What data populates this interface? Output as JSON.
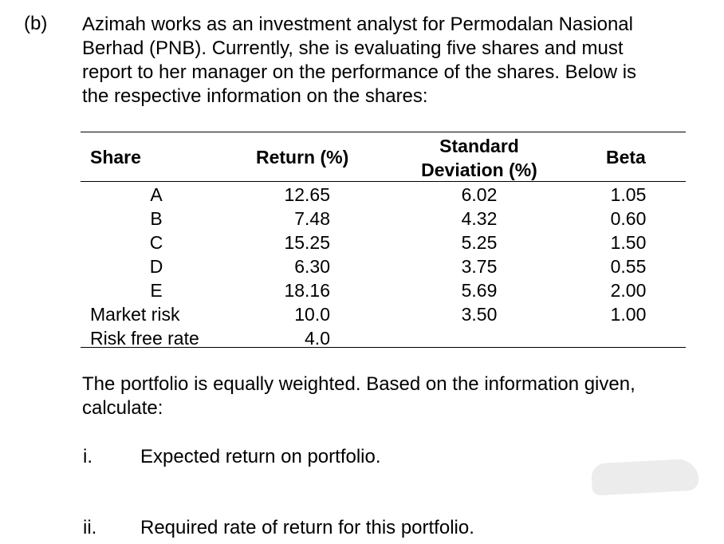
{
  "question": {
    "label": "(b)",
    "intro_lines": [
      "Azimah works as an investment analyst for Permodalan Nasional",
      "Berhad (PNB). Currently, she is evaluating five shares and must",
      "report to her manager on the performance of the shares. Below is",
      "the respective information on the shares:"
    ]
  },
  "table": {
    "headers": {
      "share": "Share",
      "return": "Return (%)",
      "sd_line1": "Standard",
      "sd_line2": "Deviation (%)",
      "beta": "Beta"
    },
    "rows": [
      {
        "share": "A",
        "return": "12.65",
        "sd": "6.02",
        "beta": "1.05"
      },
      {
        "share": "B",
        "return": "7.48",
        "sd": "4.32",
        "beta": "0.60"
      },
      {
        "share": "C",
        "return": "15.25",
        "sd": "5.25",
        "beta": "1.50"
      },
      {
        "share": "D",
        "return": "6.30",
        "sd": "3.75",
        "beta": "0.55"
      },
      {
        "share": "E",
        "return": "18.16",
        "sd": "5.69",
        "beta": "2.00"
      },
      {
        "share": "Market risk",
        "return": "10.0",
        "sd": "3.50",
        "beta": "1.00"
      },
      {
        "share": "Risk free rate",
        "return": "4.0",
        "sd": "",
        "beta": ""
      }
    ]
  },
  "instructions": {
    "line1": "The portfolio is equally weighted. Based on the information given,",
    "line2": "calculate:"
  },
  "sub_questions": [
    {
      "num": "i.",
      "text": "Expected return on portfolio."
    },
    {
      "num": "ii.",
      "text": "Required rate of return for this portfolio."
    }
  ]
}
